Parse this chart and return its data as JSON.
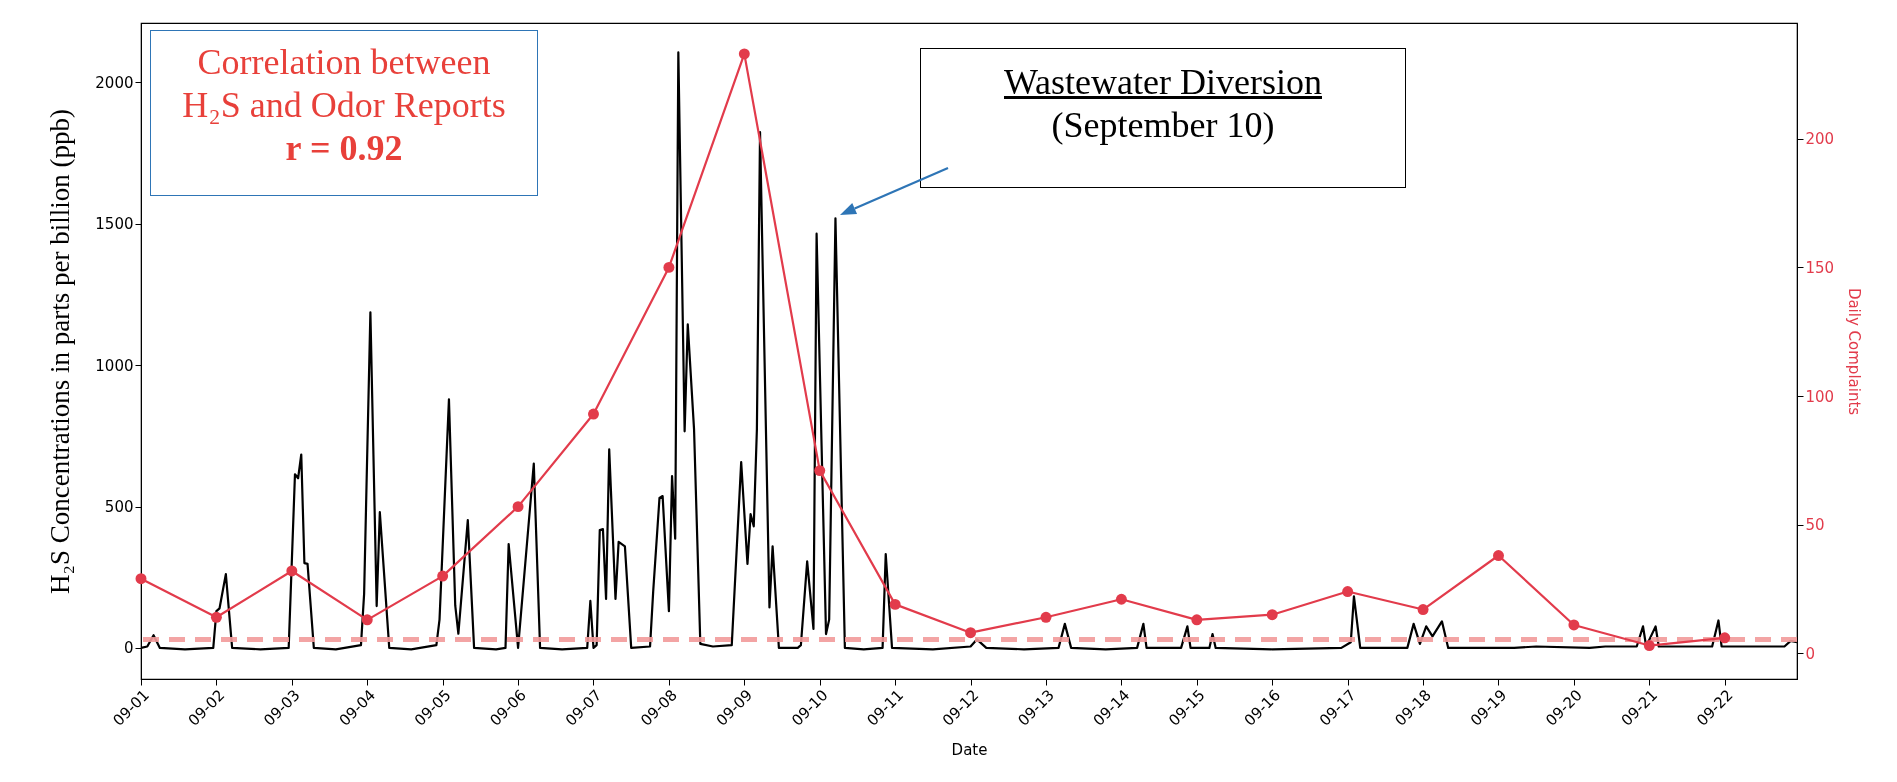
{
  "chart_data": {
    "type": "line",
    "xlabel": "Date",
    "ylabel": "H₂S Concentrations in parts per billion (ppb)",
    "y2label": "Daily Complaints",
    "annotations": [
      "Correlation between\nH₂S and Odor Reports\nr = 0.92",
      "Wastewater Diversion\n(September 10)"
    ],
    "xlim": [
      "--09-01",
      "--09-22T23:00"
    ],
    "xticks": [
      {
        "value": "--09-01",
        "label": "09-01"
      },
      {
        "value": "--09-02",
        "label": "09-02"
      },
      {
        "value": "--09-03",
        "label": "09-03"
      },
      {
        "value": "--09-04",
        "label": "09-04"
      },
      {
        "value": "--09-05",
        "label": "09-05"
      },
      {
        "value": "--09-06",
        "label": "09-06"
      },
      {
        "value": "--09-07",
        "label": "09-07"
      },
      {
        "value": "--09-08",
        "label": "09-08"
      },
      {
        "value": "--09-09",
        "label": "09-09"
      },
      {
        "value": "--09-10",
        "label": "09-10"
      },
      {
        "value": "--09-11",
        "label": "09-11"
      },
      {
        "value": "--09-12",
        "label": "09-12"
      },
      {
        "value": "--09-13",
        "label": "09-13"
      },
      {
        "value": "--09-14",
        "label": "09-14"
      },
      {
        "value": "--09-15",
        "label": "09-15"
      },
      {
        "value": "--09-16",
        "label": "09-16"
      },
      {
        "value": "--09-17",
        "label": "09-17"
      },
      {
        "value": "--09-18",
        "label": "09-18"
      },
      {
        "value": "--09-19",
        "label": "09-19"
      },
      {
        "value": "--09-20",
        "label": "09-20"
      },
      {
        "value": "--09-21",
        "label": "09-21"
      },
      {
        "value": "--09-22",
        "label": "09-22"
      }
    ],
    "ylim": [
      -110,
      2210
    ],
    "yticks": [
      0,
      500,
      1000,
      1500,
      2000
    ],
    "y2lim": [
      -10,
      245
    ],
    "y2ticks": [
      0,
      50,
      100,
      150,
      200
    ],
    "series": [
      {
        "color": "#000000",
        "marker": "none",
        "x": [
          "--09-01T00:00",
          "--09-01T02:00",
          "--09-01T04:00",
          "--09-01T06:00",
          "--09-01T14:00",
          "--09-01T23:00",
          "--09-02T00:00",
          "--09-02T01:00",
          "--09-02T03:00",
          "--09-02T05:00",
          "--09-02T14:00",
          "--09-02T23:00",
          "--09-03T01:00",
          "--09-03T02:00",
          "--09-03T03:00",
          "--09-03T04:00",
          "--09-03T05:00",
          "--09-03T07:00",
          "--09-03T14:00",
          "--09-03T22:00",
          "--09-03T23:00",
          "--09-04T01:00",
          "--09-04T03:00",
          "--09-04T04:00",
          "--09-04T07:00",
          "--09-04T14:00",
          "--09-04T22:00",
          "--09-04T23:00",
          "--09-05T02:00",
          "--09-05T04:00",
          "--09-05T05:00",
          "--09-05T08:00",
          "--09-05T10:00",
          "--09-05T17:00",
          "--09-05T20:00",
          "--09-05T21:00",
          "--09-06T00:00",
          "--09-06T05:00",
          "--09-06T07:00",
          "--09-06T14:00",
          "--09-06T22:00",
          "--09-06T23:00",
          "--09-07T00:00",
          "--09-07T01:00",
          "--09-07T02:00",
          "--09-07T03:00",
          "--09-07T04:00",
          "--09-07T05:00",
          "--09-07T07:00",
          "--09-07T08:00",
          "--09-07T10:00",
          "--09-07T12:00",
          "--09-07T18:00",
          "--09-07T19:00",
          "--09-07T21:00",
          "--09-07T22:00",
          "--09-08T00:00",
          "--09-08T01:00",
          "--09-08T02:00",
          "--09-08T03:00",
          "--09-08T05:00",
          "--09-08T06:00",
          "--09-08T08:00",
          "--09-08T10:00",
          "--09-08T14:00",
          "--09-08T20:00",
          "--09-08T23:00",
          "--09-09T01:00",
          "--09-09T02:00",
          "--09-09T03:00",
          "--09-09T04:00",
          "--09-09T05:00",
          "--09-09T08:00",
          "--09-09T09:00",
          "--09-09T11:00",
          "--09-09T17:00",
          "--09-09T18:00",
          "--09-09T20:00",
          "--09-09T22:00",
          "--09-09T23:00",
          "--09-10T02:00",
          "--09-10T03:00",
          "--09-10T05:00",
          "--09-10T08:00",
          "--09-10T14:00",
          "--09-10T20:00",
          "--09-10T21:00",
          "--09-10T23:00",
          "--09-11T12:00",
          "--09-12T00:00",
          "--09-12T02:00",
          "--09-12T05:00",
          "--09-12T17:00",
          "--09-13T04:00",
          "--09-13T06:00",
          "--09-13T08:00",
          "--09-13T19:00",
          "--09-14T05:00",
          "--09-14T07:00",
          "--09-14T08:00",
          "--09-14T19:00",
          "--09-14T21:00",
          "--09-14T22:00",
          "--09-15T04:00",
          "--09-15T05:00",
          "--09-15T06:00",
          "--09-16T00:00",
          "--09-16T22:00",
          "--09-17T01:00",
          "--09-17T02:00",
          "--09-17T04:00",
          "--09-17T19:00",
          "--09-17T21:00",
          "--09-17T23:00",
          "--09-18T01:00",
          "--09-18T03:00",
          "--09-18T06:00",
          "--09-18T08:00",
          "--09-19T05:00",
          "--09-19T12:00",
          "--09-20T05:00",
          "--09-20T10:00",
          "--09-20T20:00",
          "--09-20T22:00",
          "--09-20T23:00",
          "--09-21T02:00",
          "--09-21T03:00",
          "--09-21T20:00",
          "--09-21T22:00",
          "--09-21T23:00",
          "--09-22T19:00",
          "--09-22T21:00",
          "--09-22T23:00"
        ],
        "values": [
          0,
          5,
          45,
          0,
          -5,
          0,
          130,
          140,
          261,
          0,
          -5,
          0,
          614,
          600,
          684,
          300,
          297,
          0,
          -5,
          10,
          190,
          1187,
          148,
          480,
          0,
          -5,
          10,
          100,
          879,
          150,
          50,
          452,
          0,
          -5,
          0,
          367,
          0,
          652,
          0,
          -5,
          0,
          166,
          0,
          10,
          417,
          420,
          173,
          702,
          173,
          375,
          359,
          0,
          5,
          200,
          530,
          537,
          130,
          608,
          386,
          2106,
          766,
          1144,
          773,
          14,
          5,
          10,
          657,
          297,
          473,
          430,
          773,
          1824,
          143,
          359,
          0,
          0,
          10,
          306,
          67,
          1465,
          49,
          100,
          1519,
          0,
          -5,
          0,
          332,
          0,
          -5,
          5,
          30,
          0,
          -5,
          0,
          85,
          0,
          -5,
          0,
          85,
          0,
          0,
          76,
          0,
          0,
          49,
          0,
          -5,
          0,
          20,
          182,
          0,
          0,
          85,
          14,
          76,
          41,
          94,
          0,
          0,
          5,
          0,
          5,
          5,
          76,
          5,
          76,
          5,
          5,
          97,
          5,
          5,
          25,
          20
        ]
      },
      {
        "color": "#e23b4b",
        "marker": "circle",
        "axis": "y2",
        "x": [
          "--09-01",
          "--09-02",
          "--09-03",
          "--09-04",
          "--09-05",
          "--09-06",
          "--09-07",
          "--09-08",
          "--09-09",
          "--09-10",
          "--09-11",
          "--09-12",
          "--09-13",
          "--09-14",
          "--09-15",
          "--09-16",
          "--09-17",
          "--09-18",
          "--09-19",
          "--09-20",
          "--09-21",
          "--09-22"
        ],
        "values": [
          29,
          14,
          32,
          13,
          30,
          57,
          93,
          150,
          233,
          71,
          19,
          8,
          14,
          21,
          13,
          15,
          24,
          17,
          38,
          11,
          3,
          6
        ]
      }
    ],
    "ref_lines": [
      {
        "axis": "y",
        "value": 30,
        "color": "#f29a9a",
        "line_style": "dashed"
      }
    ]
  }
}
